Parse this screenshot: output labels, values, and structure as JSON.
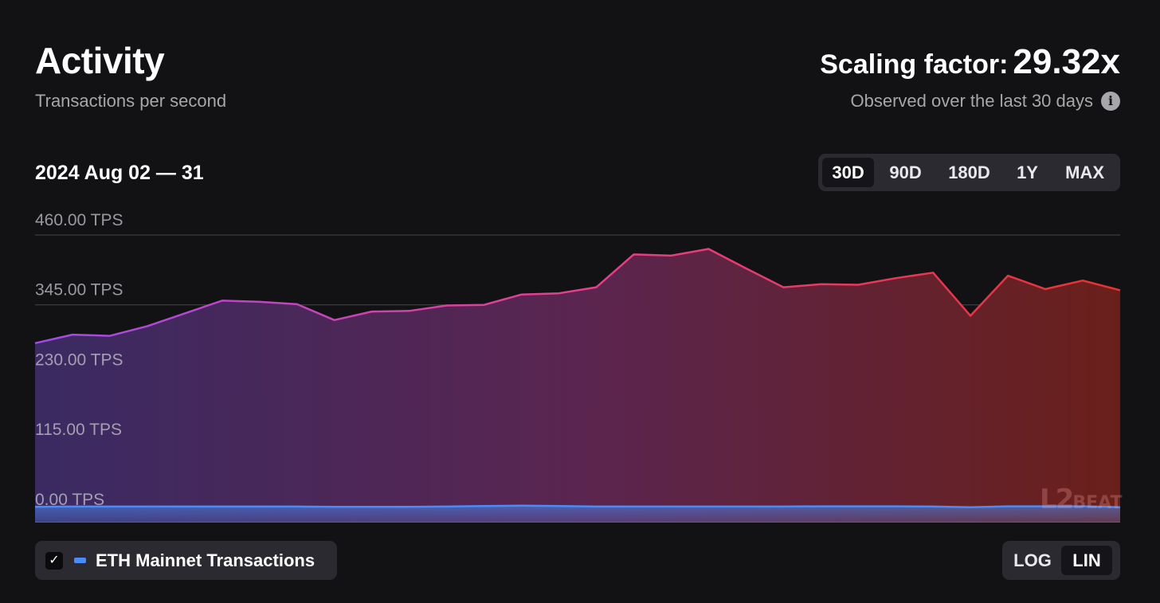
{
  "header": {
    "title": "Activity",
    "subtitle": "Transactions per second",
    "scaling_label": "Scaling factor:",
    "scaling_value": "29.32x",
    "observed": "Observed over the last 30 days",
    "info_icon": "info-icon"
  },
  "range_label": "2024 Aug 02 — 31",
  "timeframes": [
    "30D",
    "90D",
    "180D",
    "1Y",
    "MAX"
  ],
  "timeframe_selected": "30D",
  "scale_options": [
    "LOG",
    "LIN"
  ],
  "scale_selected": "LIN",
  "legend": {
    "checked": true,
    "label": "ETH Mainnet Transactions",
    "color": "#4a8cf7"
  },
  "watermark": "L2BEAT",
  "colors": {
    "background": "#121114",
    "line_start": "#a24be6",
    "line_mid": "#e63f8e",
    "line_end": "#e8322f",
    "eth": "#4a8cf7"
  },
  "chart_data": {
    "type": "area",
    "x": [
      "2024-08-02",
      "2024-08-03",
      "2024-08-04",
      "2024-08-05",
      "2024-08-06",
      "2024-08-07",
      "2024-08-08",
      "2024-08-09",
      "2024-08-10",
      "2024-08-11",
      "2024-08-12",
      "2024-08-13",
      "2024-08-14",
      "2024-08-15",
      "2024-08-16",
      "2024-08-17",
      "2024-08-18",
      "2024-08-19",
      "2024-08-20",
      "2024-08-21",
      "2024-08-22",
      "2024-08-23",
      "2024-08-24",
      "2024-08-25",
      "2024-08-26",
      "2024-08-27",
      "2024-08-28",
      "2024-08-29",
      "2024-08-30",
      "2024-08-31"
    ],
    "series": [
      {
        "name": "",
        "values": [
          282,
          296,
          294,
          310,
          331,
          352,
          350,
          346,
          320,
          334,
          335,
          344,
          345,
          362,
          364,
          374,
          428,
          426,
          437,
          405,
          374,
          379,
          378,
          389,
          398,
          327,
          393,
          371,
          385,
          369
        ]
      },
      {
        "name": "ETH Mainnet Transactions",
        "values": [
          12.5,
          13,
          13,
          13,
          13,
          13,
          13,
          13,
          12.5,
          12.5,
          12.5,
          13,
          14,
          14.5,
          14,
          13,
          13,
          13,
          13,
          13,
          13,
          13.5,
          13.5,
          13.5,
          13,
          12,
          13.5,
          13.5,
          13.5,
          12
        ]
      }
    ],
    "y_ticks": [
      "0.00 TPS",
      "115.00 TPS",
      "230.00 TPS",
      "345.00 TPS",
      "460.00 TPS"
    ],
    "y_tick_values": [
      0,
      115,
      230,
      345,
      460
    ],
    "ylim": [
      0,
      460
    ],
    "grid": true,
    "xlabel": "",
    "ylabel": ""
  }
}
